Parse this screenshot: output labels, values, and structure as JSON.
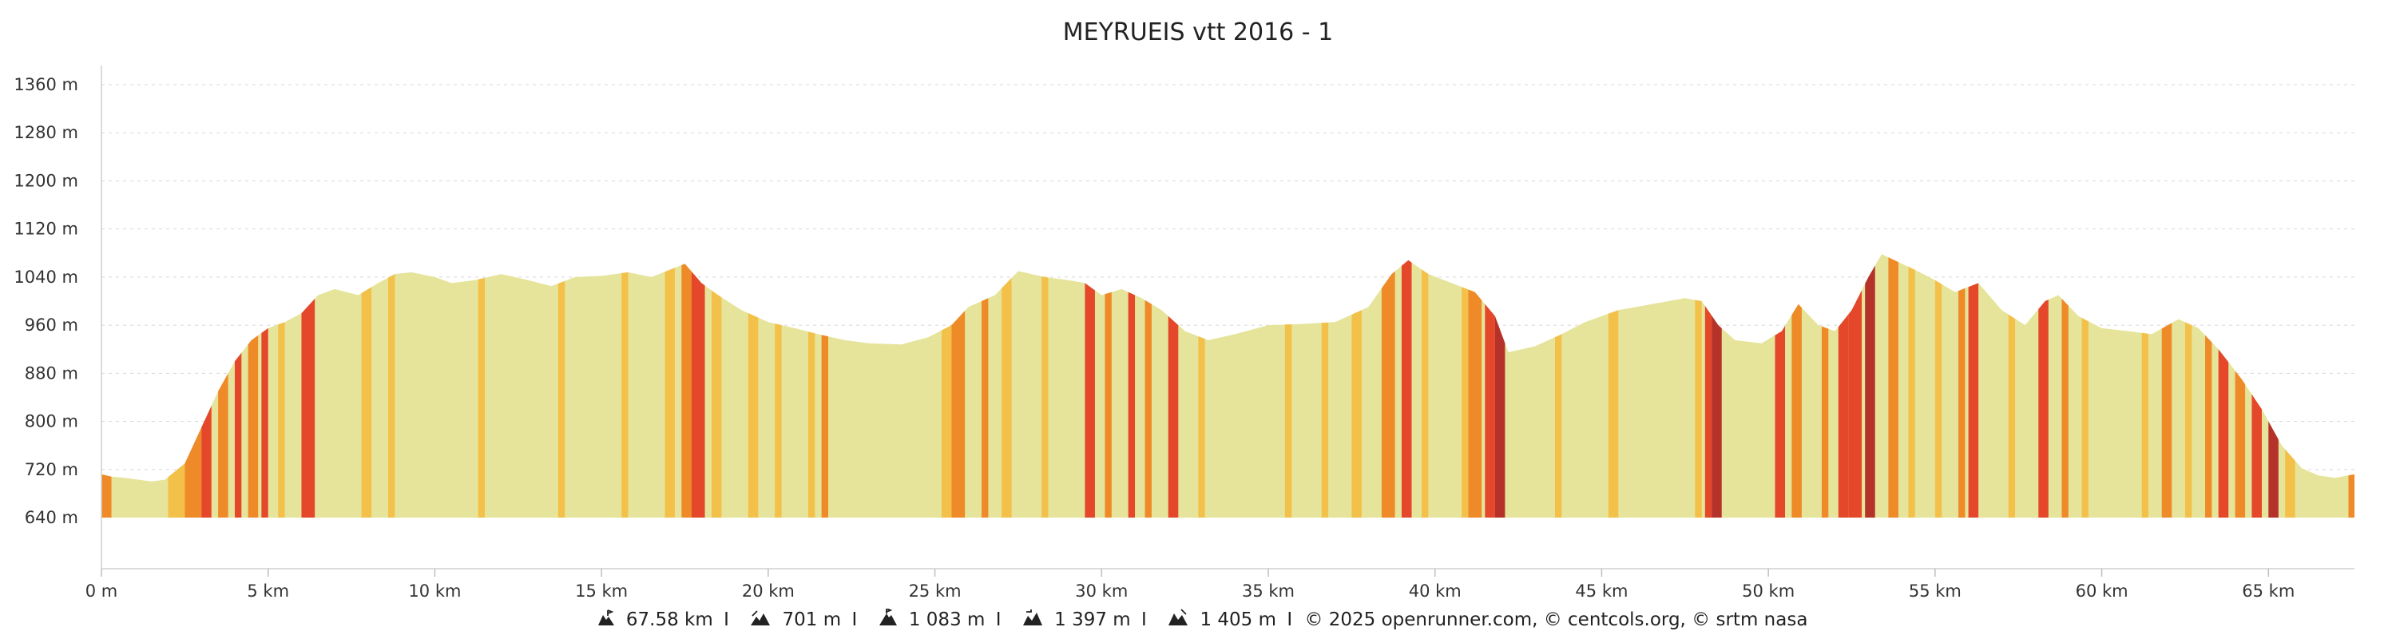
{
  "chart_data": {
    "type": "area",
    "title": "MEYRUEIS vtt 2016 - 1",
    "xlabel": "",
    "ylabel": "",
    "x_unit": "km",
    "y_unit": "m",
    "xlim": [
      0,
      67.58
    ],
    "ylim": [
      640,
      1380
    ],
    "grid": true,
    "y_ticks": [
      640,
      720,
      800,
      880,
      960,
      1040,
      1120,
      1200,
      1280,
      1360
    ],
    "y_tick_labels": [
      "640 m",
      "720 m",
      "800 m",
      "880 m",
      "960 m",
      "1040 m",
      "1120 m",
      "1200 m",
      "1280 m",
      "1360 m"
    ],
    "x_ticks": [
      0,
      5,
      10,
      15,
      20,
      25,
      30,
      35,
      40,
      45,
      50,
      55,
      60,
      65
    ],
    "x_tick_labels": [
      "0 m",
      "5 km",
      "10 km",
      "15 km",
      "20 km",
      "25 km",
      "30 km",
      "35 km",
      "40 km",
      "45 km",
      "50 km",
      "55 km",
      "60 km",
      "65 km"
    ],
    "color_scale": {
      "flat": "#e5e49a",
      "gentle": "#f3c14a",
      "moderate": "#ef8a28",
      "steep": "#e4472a",
      "very_steep": "#b5322a"
    },
    "elevation_profile": [
      [
        0,
        712
      ],
      [
        0.3,
        708
      ],
      [
        0.7,
        706
      ],
      [
        1.5,
        700
      ],
      [
        1.9,
        703
      ],
      [
        2.5,
        730
      ],
      [
        3.0,
        790
      ],
      [
        3.5,
        850
      ],
      [
        4.0,
        900
      ],
      [
        4.5,
        935
      ],
      [
        5.0,
        955
      ],
      [
        5.5,
        965
      ],
      [
        6.0,
        980
      ],
      [
        6.5,
        1010
      ],
      [
        7.0,
        1020
      ],
      [
        7.7,
        1010
      ],
      [
        8.3,
        1030
      ],
      [
        8.8,
        1045
      ],
      [
        9.3,
        1048
      ],
      [
        10.0,
        1040
      ],
      [
        10.5,
        1030
      ],
      [
        11.2,
        1035
      ],
      [
        12.0,
        1045
      ],
      [
        12.8,
        1035
      ],
      [
        13.5,
        1025
      ],
      [
        14.2,
        1040
      ],
      [
        15.0,
        1042
      ],
      [
        15.8,
        1048
      ],
      [
        16.5,
        1040
      ],
      [
        17.5,
        1062
      ],
      [
        18.0,
        1030
      ],
      [
        18.5,
        1010
      ],
      [
        19.2,
        985
      ],
      [
        20.0,
        965
      ],
      [
        20.8,
        955
      ],
      [
        21.5,
        945
      ],
      [
        22.3,
        935
      ],
      [
        23.0,
        930
      ],
      [
        24.0,
        928
      ],
      [
        24.8,
        940
      ],
      [
        25.5,
        960
      ],
      [
        26.0,
        990
      ],
      [
        26.8,
        1010
      ],
      [
        27.5,
        1050
      ],
      [
        28.3,
        1040
      ],
      [
        29.0,
        1035
      ],
      [
        29.5,
        1030
      ],
      [
        30.0,
        1010
      ],
      [
        30.6,
        1020
      ],
      [
        31.2,
        1005
      ],
      [
        31.8,
        985
      ],
      [
        32.5,
        950
      ],
      [
        33.2,
        935
      ],
      [
        34.0,
        945
      ],
      [
        35.0,
        960
      ],
      [
        36.0,
        962
      ],
      [
        37.0,
        965
      ],
      [
        38.0,
        990
      ],
      [
        38.7,
        1045
      ],
      [
        39.2,
        1068
      ],
      [
        39.8,
        1045
      ],
      [
        40.5,
        1030
      ],
      [
        41.2,
        1015
      ],
      [
        41.8,
        975
      ],
      [
        42.2,
        915
      ],
      [
        43.0,
        925
      ],
      [
        43.8,
        945
      ],
      [
        44.5,
        965
      ],
      [
        45.5,
        985
      ],
      [
        46.5,
        995
      ],
      [
        47.5,
        1005
      ],
      [
        48.0,
        1000
      ],
      [
        48.5,
        960
      ],
      [
        49.0,
        935
      ],
      [
        49.8,
        930
      ],
      [
        50.4,
        950
      ],
      [
        50.9,
        995
      ],
      [
        51.5,
        960
      ],
      [
        52.0,
        950
      ],
      [
        52.5,
        985
      ],
      [
        53.0,
        1040
      ],
      [
        53.4,
        1078
      ],
      [
        53.9,
        1065
      ],
      [
        54.4,
        1052
      ],
      [
        55.0,
        1035
      ],
      [
        55.6,
        1015
      ],
      [
        56.3,
        1030
      ],
      [
        57.0,
        985
      ],
      [
        57.7,
        960
      ],
      [
        58.3,
        1000
      ],
      [
        58.7,
        1010
      ],
      [
        59.3,
        975
      ],
      [
        60.0,
        955
      ],
      [
        60.8,
        950
      ],
      [
        61.5,
        945
      ],
      [
        62.3,
        970
      ],
      [
        62.9,
        955
      ],
      [
        63.5,
        920
      ],
      [
        64.2,
        870
      ],
      [
        64.8,
        820
      ],
      [
        65.4,
        760
      ],
      [
        66.0,
        722
      ],
      [
        66.5,
        710
      ],
      [
        67.0,
        706
      ],
      [
        67.58,
        712
      ]
    ],
    "slope_bands": [
      [
        0.0,
        0.3,
        "moderate"
      ],
      [
        2.0,
        2.5,
        "gentle"
      ],
      [
        2.5,
        3.0,
        "moderate"
      ],
      [
        3.0,
        3.3,
        "steep"
      ],
      [
        3.5,
        3.8,
        "moderate"
      ],
      [
        4.0,
        4.2,
        "steep"
      ],
      [
        4.4,
        4.7,
        "moderate"
      ],
      [
        4.8,
        5.0,
        "steep"
      ],
      [
        5.3,
        5.5,
        "gentle"
      ],
      [
        6.0,
        6.4,
        "steep"
      ],
      [
        7.8,
        8.1,
        "gentle"
      ],
      [
        8.6,
        8.8,
        "gentle"
      ],
      [
        11.3,
        11.5,
        "gentle"
      ],
      [
        13.7,
        13.9,
        "gentle"
      ],
      [
        15.6,
        15.8,
        "gentle"
      ],
      [
        16.9,
        17.2,
        "gentle"
      ],
      [
        17.4,
        17.7,
        "moderate"
      ],
      [
        17.7,
        18.1,
        "steep"
      ],
      [
        18.3,
        18.6,
        "gentle"
      ],
      [
        19.4,
        19.7,
        "gentle"
      ],
      [
        20.2,
        20.4,
        "gentle"
      ],
      [
        21.2,
        21.4,
        "gentle"
      ],
      [
        21.6,
        21.8,
        "moderate"
      ],
      [
        25.2,
        25.5,
        "gentle"
      ],
      [
        25.5,
        25.9,
        "moderate"
      ],
      [
        26.4,
        26.6,
        "moderate"
      ],
      [
        27.0,
        27.3,
        "gentle"
      ],
      [
        28.2,
        28.4,
        "gentle"
      ],
      [
        29.5,
        29.8,
        "steep"
      ],
      [
        30.1,
        30.3,
        "moderate"
      ],
      [
        30.8,
        31.0,
        "steep"
      ],
      [
        31.3,
        31.5,
        "moderate"
      ],
      [
        32.0,
        32.3,
        "steep"
      ],
      [
        32.9,
        33.1,
        "gentle"
      ],
      [
        35.5,
        35.7,
        "gentle"
      ],
      [
        36.6,
        36.8,
        "gentle"
      ],
      [
        37.5,
        37.8,
        "gentle"
      ],
      [
        38.4,
        38.8,
        "moderate"
      ],
      [
        39.0,
        39.3,
        "steep"
      ],
      [
        39.6,
        39.8,
        "gentle"
      ],
      [
        40.8,
        41.0,
        "gentle"
      ],
      [
        41.0,
        41.4,
        "moderate"
      ],
      [
        41.5,
        41.8,
        "steep"
      ],
      [
        41.8,
        42.1,
        "very_steep"
      ],
      [
        43.6,
        43.8,
        "gentle"
      ],
      [
        45.2,
        45.5,
        "gentle"
      ],
      [
        47.8,
        48.0,
        "gentle"
      ],
      [
        48.1,
        48.3,
        "steep"
      ],
      [
        48.3,
        48.6,
        "very_steep"
      ],
      [
        50.2,
        50.5,
        "steep"
      ],
      [
        50.7,
        51.0,
        "moderate"
      ],
      [
        51.6,
        51.8,
        "moderate"
      ],
      [
        52.1,
        52.4,
        "steep"
      ],
      [
        52.4,
        52.8,
        "steep"
      ],
      [
        52.9,
        53.2,
        "very_steep"
      ],
      [
        53.6,
        53.9,
        "moderate"
      ],
      [
        54.2,
        54.4,
        "gentle"
      ],
      [
        55.0,
        55.2,
        "gentle"
      ],
      [
        55.7,
        55.9,
        "moderate"
      ],
      [
        56.0,
        56.3,
        "steep"
      ],
      [
        57.2,
        57.4,
        "gentle"
      ],
      [
        58.1,
        58.4,
        "steep"
      ],
      [
        58.8,
        59.0,
        "moderate"
      ],
      [
        59.4,
        59.6,
        "gentle"
      ],
      [
        61.2,
        61.4,
        "gentle"
      ],
      [
        61.8,
        62.1,
        "moderate"
      ],
      [
        62.5,
        62.7,
        "gentle"
      ],
      [
        63.1,
        63.3,
        "moderate"
      ],
      [
        63.5,
        63.8,
        "steep"
      ],
      [
        64.0,
        64.3,
        "moderate"
      ],
      [
        64.5,
        64.8,
        "steep"
      ],
      [
        65.0,
        65.3,
        "very_steep"
      ],
      [
        65.5,
        65.8,
        "gentle"
      ],
      [
        67.4,
        67.58,
        "moderate"
      ]
    ]
  },
  "footer": {
    "distance": "67.58 km",
    "elevation_gain": "701 m",
    "max_altitude": "1 083 m",
    "stat_4": "1 397 m",
    "stat_5": "1 405 m",
    "credits": "© 2025 openrunner.com, © centcols.org, © srtm nasa"
  }
}
